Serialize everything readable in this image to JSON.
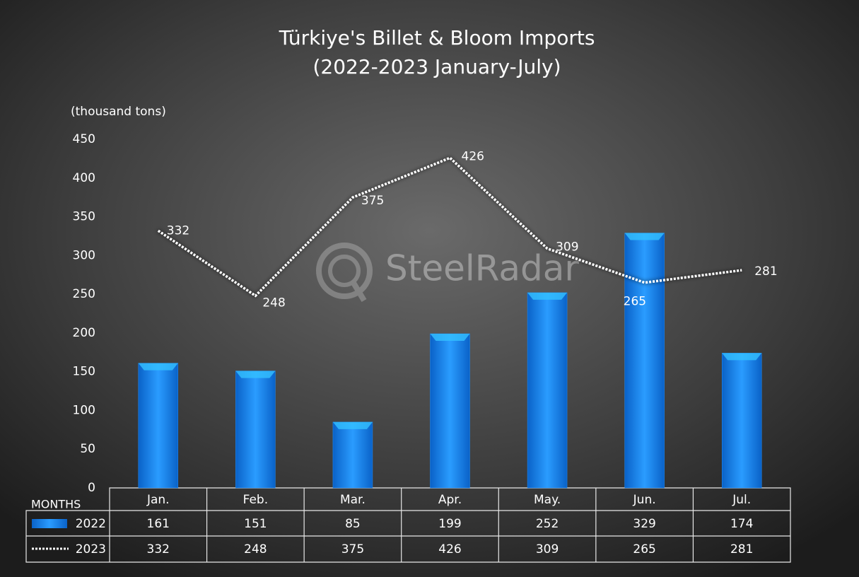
{
  "chart_data": {
    "type": "bar",
    "title": "Türkiye's Billet & Bloom Imports",
    "subtitle": "(2022-2023 January-July)",
    "y_label": "(thousand tons)",
    "table_header": "MONTHS",
    "watermark": "SteelRadar",
    "categories": [
      "Jan.",
      "Feb.",
      "Mar.",
      "Apr.",
      "May.",
      "Jun.",
      "Jul."
    ],
    "series": [
      {
        "name": "2022",
        "type": "bar",
        "color": "#1e90ff",
        "values": [
          161,
          151,
          85,
          199,
          252,
          329,
          174
        ]
      },
      {
        "name": "2023",
        "type": "line",
        "color": "#ffffff",
        "values": [
          332,
          248,
          375,
          426,
          309,
          265,
          281
        ]
      }
    ],
    "ylim": [
      0,
      450
    ],
    "yticks": [
      0,
      50,
      100,
      150,
      200,
      250,
      300,
      350,
      400,
      450
    ],
    "grid": false
  }
}
